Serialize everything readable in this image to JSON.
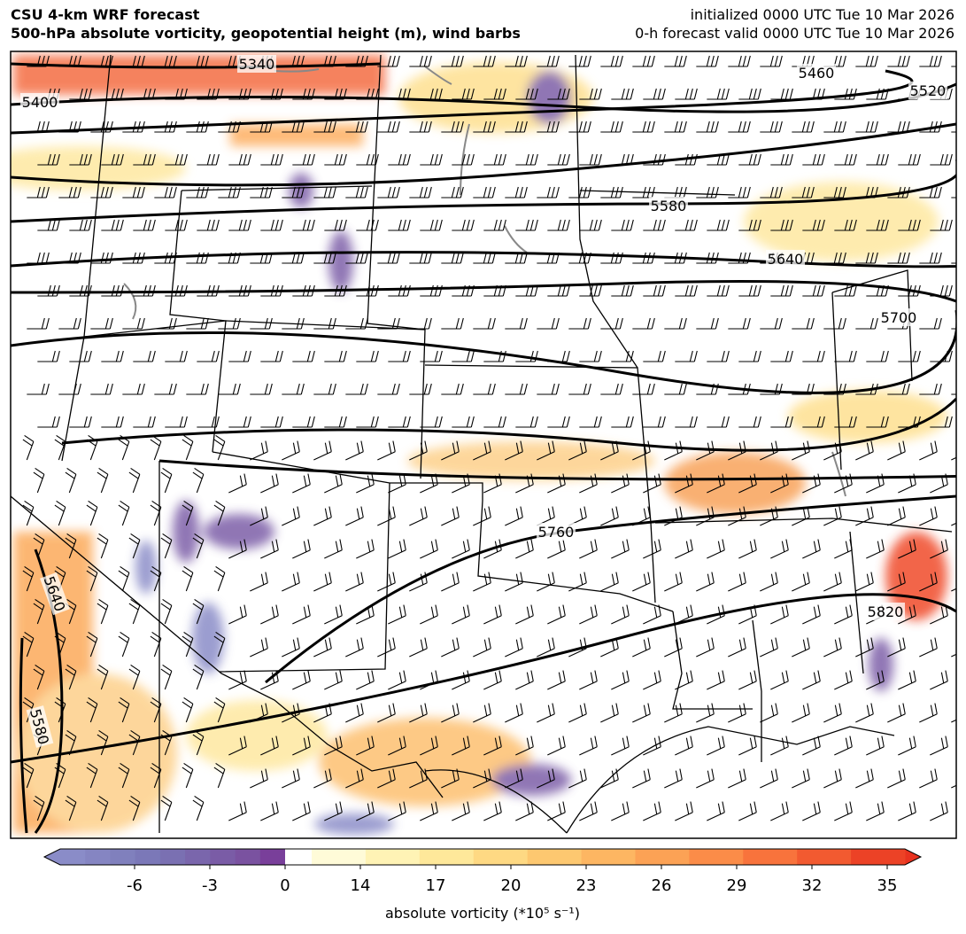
{
  "header": {
    "title_left": [
      "CSU 4-km WRF forecast",
      "500-hPa absolute vorticity, geopotential height (m), wind barbs"
    ],
    "title_right": [
      "initialized 0000 UTC Tue 10 Mar 2026",
      "0-h forecast valid 0000 UTC Tue 10 Mar 2026"
    ]
  },
  "map": {
    "contour_labels": [
      "5340",
      "5400",
      "5460",
      "5520",
      "5580",
      "5640",
      "5700",
      "5760",
      "5820",
      "5640",
      "5580"
    ]
  },
  "colorbar": {
    "ticks": [
      -6,
      -3,
      0,
      14,
      17,
      20,
      23,
      26,
      29,
      32,
      35
    ],
    "label": "absolute vorticity (*10⁵ s⁻¹)"
  }
}
